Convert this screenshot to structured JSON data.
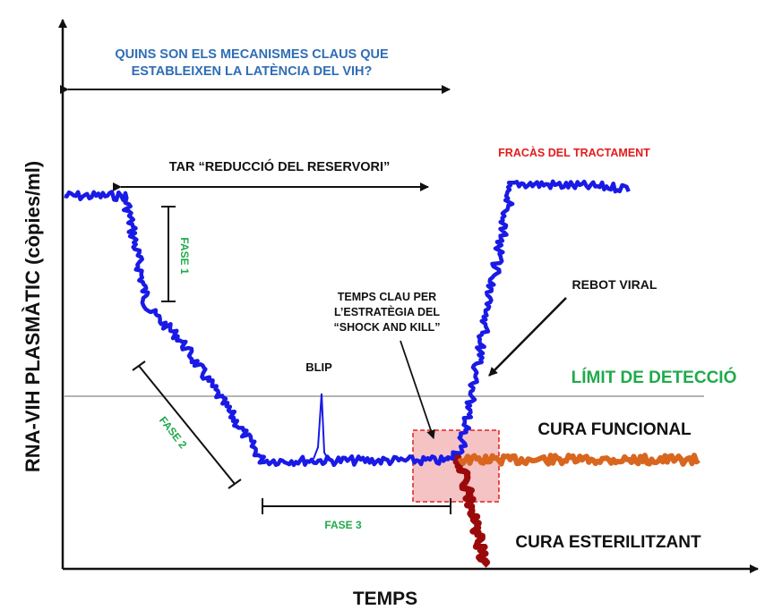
{
  "texts": {
    "question_line1": "QUINS SON ELS MECANISMES CLAUS QUE",
    "question_line2": "ESTABLEIXEN LA LATÈNCIA DEL VIH?",
    "y_axis_label": "RNA-VIH PLASMÀTIC (còpies/ml)",
    "x_axis_label": "TEMPS",
    "tar_label": "TAR “REDUCCIÓ DEL RESERVORI”",
    "fase1": "FASE 1",
    "fase2": "FASE 2",
    "fase3": "FASE 3",
    "blip": "BLIP",
    "key_time_line1": "TEMPS CLAU PER",
    "key_time_line2": "L’ESTRATÈGIA DEL",
    "key_time_line3": "“SHOCK AND KILL”",
    "treatment_failure": "FRACÀS DEL TRACTAMENT",
    "viral_rebound": "REBOT VIRAL",
    "detection_limit": "LÍMIT DE DETECCIÓ",
    "functional_cure": "CURA FUNCIONAL",
    "sterilizing_cure": "CURA ESTERILITZANT"
  },
  "colors": {
    "viral_load": "#1a1ae6",
    "functional_cure": "#d9661f",
    "sterilizing_cure": "#9b0a0a",
    "question": "#2f6db5",
    "treatment_failure": "#e21b1b",
    "phase_labels": "#1faa4a",
    "detection_limit": "#1faa4a",
    "highlight_fill": "#f6c3c5",
    "highlight_border": "#e02020",
    "threshold_line": "#9a9a9a",
    "ink": "#111111"
  }
}
